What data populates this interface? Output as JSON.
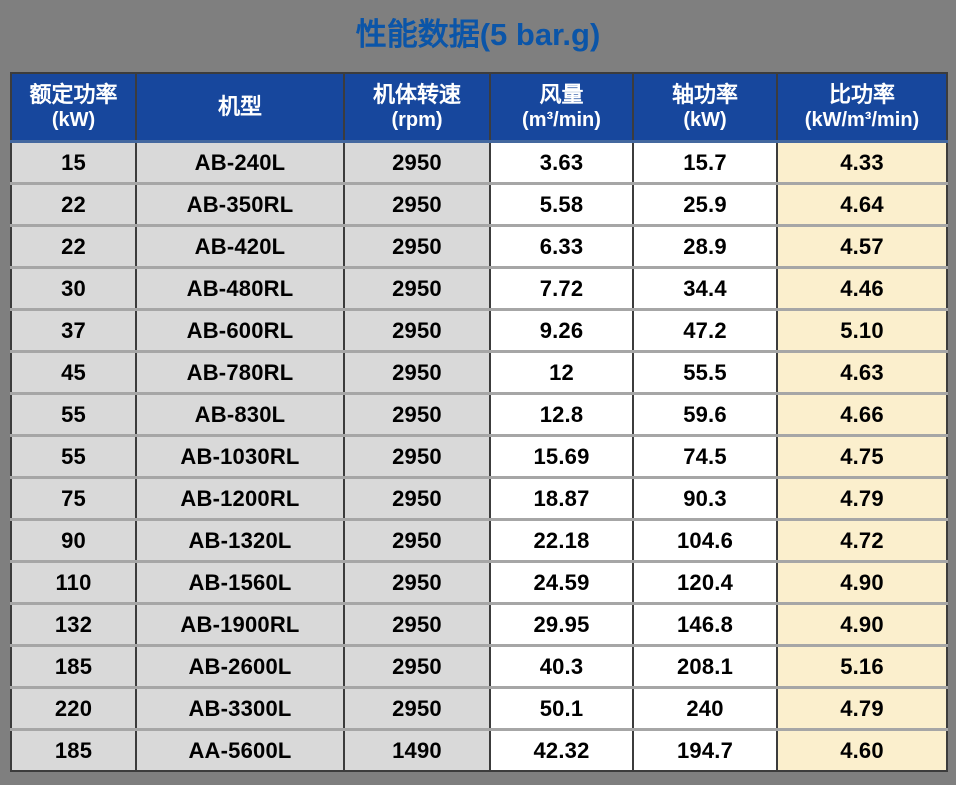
{
  "title": "性能数据(5 bar.g)",
  "colors": {
    "page_background": "#7f7f7f",
    "title_text": "#0b55a8",
    "header_background": "#17479d",
    "header_text": "#ffffff",
    "column_gray": "#d9d9d9",
    "column_white": "#ffffff",
    "column_cream": "#fbefcd",
    "vertical_border": "#3c3c3c",
    "horizontal_border": "#a6a6a6",
    "header_bottom_border": "#44689f"
  },
  "table": {
    "headers": [
      {
        "main": "额定功率",
        "unit": "(kW)"
      },
      {
        "main": "机型",
        "unit": ""
      },
      {
        "main": "机体转速",
        "unit": "(rpm)"
      },
      {
        "main": "风量",
        "unit": "(m³/min)"
      },
      {
        "main": "轴功率",
        "unit": "(kW)"
      },
      {
        "main": "比功率",
        "unit": "(kW/m³/min)"
      }
    ],
    "rows": [
      [
        "15",
        "AB-240L",
        "2950",
        "3.63",
        "15.7",
        "4.33"
      ],
      [
        "22",
        "AB-350RL",
        "2950",
        "5.58",
        "25.9",
        "4.64"
      ],
      [
        "22",
        "AB-420L",
        "2950",
        "6.33",
        "28.9",
        "4.57"
      ],
      [
        "30",
        "AB-480RL",
        "2950",
        "7.72",
        "34.4",
        "4.46"
      ],
      [
        "37",
        "AB-600RL",
        "2950",
        "9.26",
        "47.2",
        "5.10"
      ],
      [
        "45",
        "AB-780RL",
        "2950",
        "12",
        "55.5",
        "4.63"
      ],
      [
        "55",
        "AB-830L",
        "2950",
        "12.8",
        "59.6",
        "4.66"
      ],
      [
        "55",
        "AB-1030RL",
        "2950",
        "15.69",
        "74.5",
        "4.75"
      ],
      [
        "75",
        "AB-1200RL",
        "2950",
        "18.87",
        "90.3",
        "4.79"
      ],
      [
        "90",
        "AB-1320L",
        "2950",
        "22.18",
        "104.6",
        "4.72"
      ],
      [
        "110",
        "AB-1560L",
        "2950",
        "24.59",
        "120.4",
        "4.90"
      ],
      [
        "132",
        "AB-1900RL",
        "2950",
        "29.95",
        "146.8",
        "4.90"
      ],
      [
        "185",
        "AB-2600L",
        "2950",
        "40.3",
        "208.1",
        "5.16"
      ],
      [
        "220",
        "AB-3300L",
        "2950",
        "50.1",
        "240",
        "4.79"
      ],
      [
        "185",
        "AA-5600L",
        "1490",
        "42.32",
        "194.7",
        "4.60"
      ]
    ]
  },
  "chart_data": {
    "type": "table",
    "title": "性能数据(5 bar.g)",
    "columns": [
      "额定功率 (kW)",
      "机型",
      "机体转速 (rpm)",
      "风量 (m³/min)",
      "轴功率 (kW)",
      "比功率 (kW/m³/min)"
    ],
    "rows": [
      [
        "15",
        "AB-240L",
        "2950",
        "3.63",
        "15.7",
        "4.33"
      ],
      [
        "22",
        "AB-350RL",
        "2950",
        "5.58",
        "25.9",
        "4.64"
      ],
      [
        "22",
        "AB-420L",
        "2950",
        "6.33",
        "28.9",
        "4.57"
      ],
      [
        "30",
        "AB-480RL",
        "2950",
        "7.72",
        "34.4",
        "4.46"
      ],
      [
        "37",
        "AB-600RL",
        "2950",
        "9.26",
        "47.2",
        "5.10"
      ],
      [
        "45",
        "AB-780RL",
        "2950",
        "12",
        "55.5",
        "4.63"
      ],
      [
        "55",
        "AB-830L",
        "2950",
        "12.8",
        "59.6",
        "4.66"
      ],
      [
        "55",
        "AB-1030RL",
        "2950",
        "15.69",
        "74.5",
        "4.75"
      ],
      [
        "75",
        "AB-1200RL",
        "2950",
        "18.87",
        "90.3",
        "4.79"
      ],
      [
        "90",
        "AB-1320L",
        "2950",
        "22.18",
        "104.6",
        "4.72"
      ],
      [
        "110",
        "AB-1560L",
        "2950",
        "24.59",
        "120.4",
        "4.90"
      ],
      [
        "132",
        "AB-1900RL",
        "2950",
        "29.95",
        "146.8",
        "4.90"
      ],
      [
        "185",
        "AB-2600L",
        "2950",
        "40.3",
        "208.1",
        "5.16"
      ],
      [
        "220",
        "AB-3300L",
        "2950",
        "50.1",
        "240",
        "4.79"
      ],
      [
        "185",
        "AA-5600L",
        "1490",
        "42.32",
        "194.7",
        "4.60"
      ]
    ]
  }
}
